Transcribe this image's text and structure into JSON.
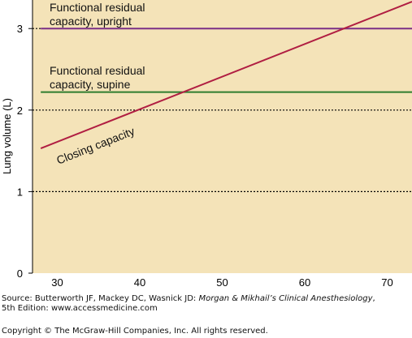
{
  "chart_data": {
    "type": "line",
    "ylabel": "Lung volume (L)",
    "xlabel": "",
    "xlim": [
      27,
      73
    ],
    "ylim": [
      0,
      3.35
    ],
    "x_ticks": [
      30,
      40,
      50,
      60,
      70
    ],
    "y_ticks": [
      0,
      1,
      2,
      3
    ],
    "dotted_gridlines_y": [
      1,
      2,
      3
    ],
    "colors": {
      "background": "#f4e3b8",
      "closing_capacity": "#b01e42",
      "frc_upright": "#7b2f86",
      "frc_supine": "#2e7d2e"
    },
    "series": [
      {
        "key": "frc_upright",
        "label_lines": [
          "Functional residual",
          "capacity, upright"
        ],
        "x": [
          28,
          73
        ],
        "y": [
          3.0,
          3.0
        ]
      },
      {
        "key": "frc_supine",
        "label_lines": [
          "Functional residual",
          "capacity, supine"
        ],
        "x": [
          28,
          73
        ],
        "y": [
          2.22,
          2.22
        ]
      },
      {
        "key": "closing_capacity",
        "label_lines": [
          "Closing capacity"
        ],
        "x": [
          28,
          73
        ],
        "y": [
          1.53,
          3.33
        ]
      }
    ]
  },
  "source": {
    "prefix": "Source: Butterworth JF, Mackey DC, Wasnick JD: ",
    "book": "Morgan & Mikhail’s Clinical Anesthesiology",
    "suffix": ",",
    "line2": "5th Edition: www.accessmedicine.com"
  },
  "copyright": "Copyright © The McGraw-Hill Companies, Inc. All rights reserved."
}
